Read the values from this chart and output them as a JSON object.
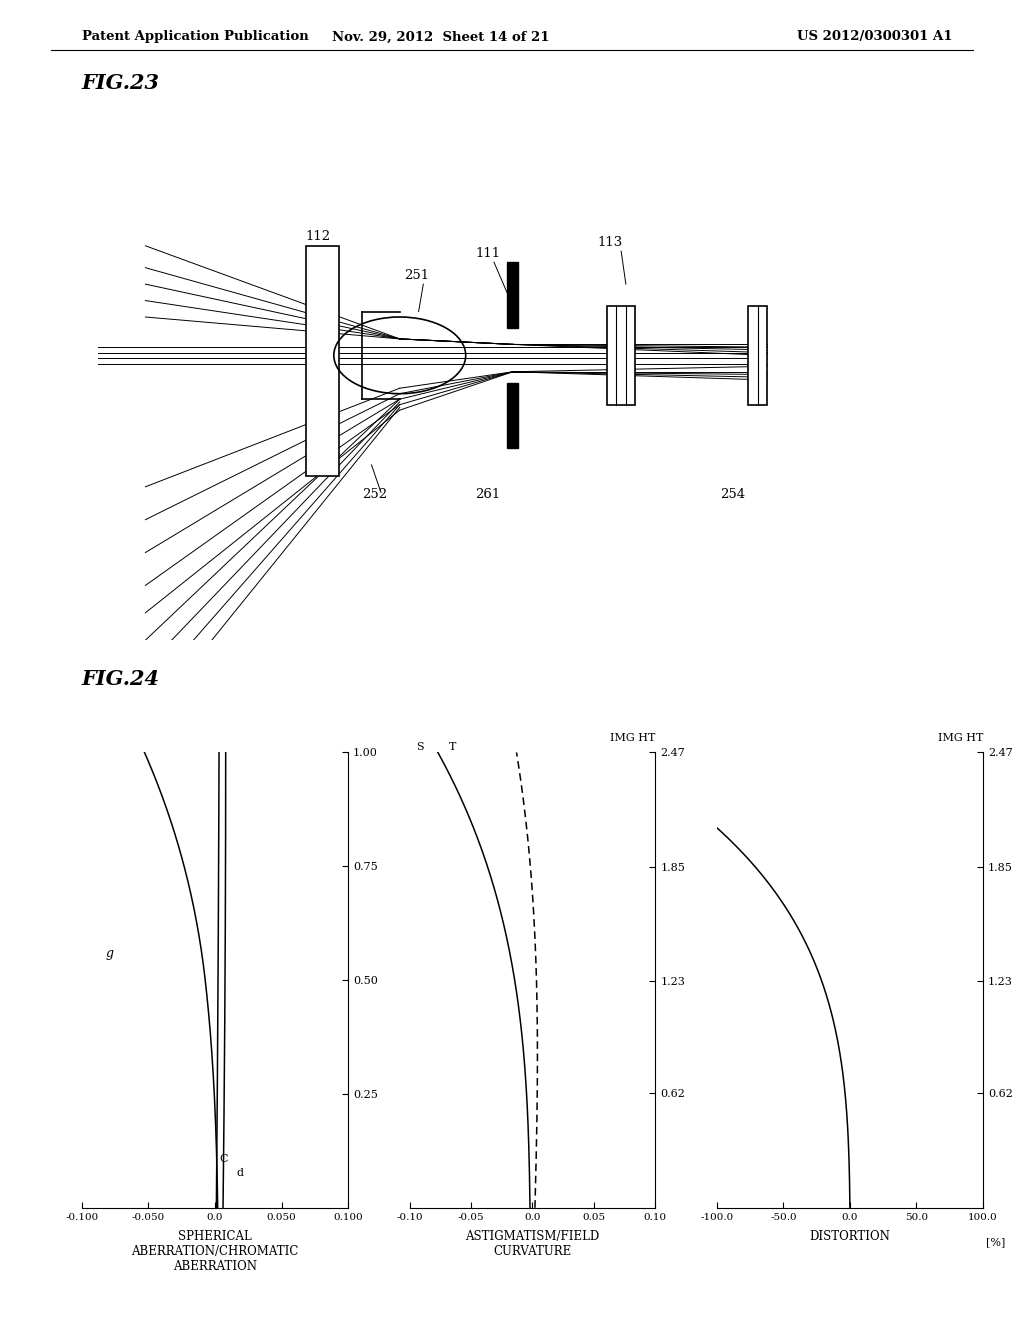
{
  "header_left": "Patent Application Publication",
  "header_mid": "Nov. 29, 2012  Sheet 14 of 21",
  "header_right": "US 2012/0300301 A1",
  "fig23_label": "FIG.23",
  "fig24_label": "FIG.24",
  "sa_xlabel": "SPHERICAL\nABERRATION/CHROMATIC\nABERRATION",
  "as_xlabel": "ASTIGMATISM/FIELD\nCURVATURE",
  "dist_xlabel": "DISTORTION",
  "img_ht_label": "IMG HT",
  "pct_label": "[%]"
}
